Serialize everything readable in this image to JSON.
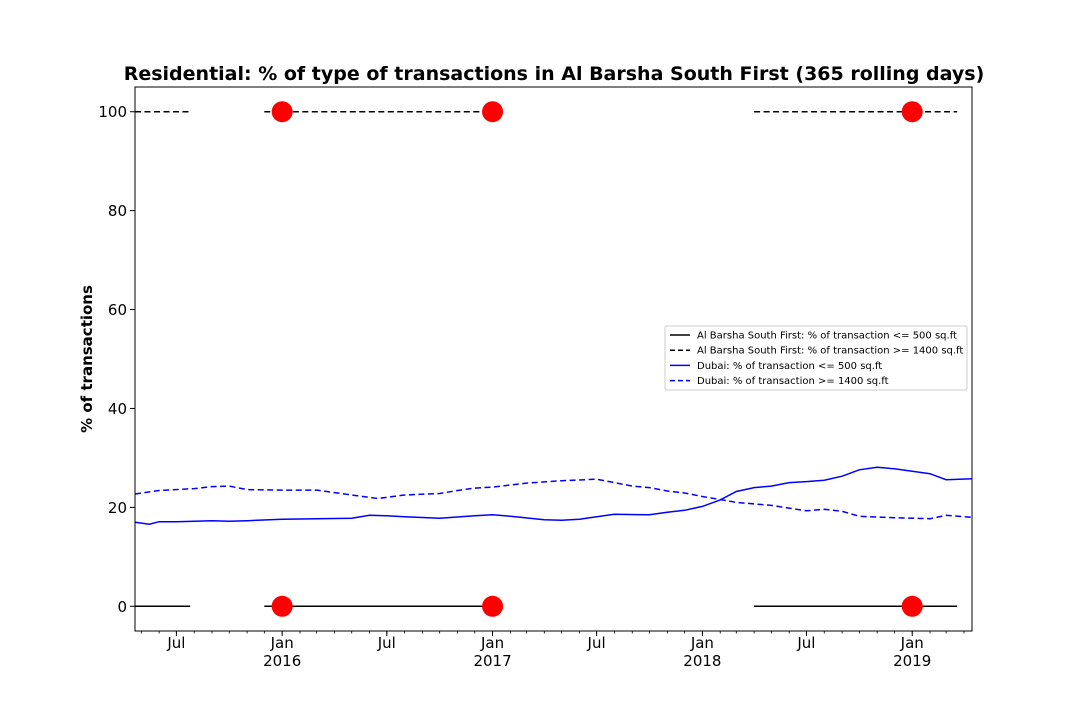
{
  "chart_data": {
    "type": "line",
    "title": "Residential: % of type of transactions in Al Barsha South First (365 rolling days)",
    "ylabel": "% of transactions",
    "xlabel": "",
    "ylim": [
      -5,
      105
    ],
    "xlim": [
      "2015-04-20",
      "2019-04-15"
    ],
    "grid": false,
    "legend_position": "center-right",
    "y_ticks": [
      0,
      20,
      40,
      60,
      80,
      100
    ],
    "x_ticks": [
      {
        "date": "2015-07-01",
        "label": "Jul",
        "sub": ""
      },
      {
        "date": "2016-01-01",
        "label": "Jan",
        "sub": "2016"
      },
      {
        "date": "2016-07-01",
        "label": "Jul",
        "sub": ""
      },
      {
        "date": "2017-01-01",
        "label": "Jan",
        "sub": "2017"
      },
      {
        "date": "2017-07-01",
        "label": "Jul",
        "sub": ""
      },
      {
        "date": "2018-01-01",
        "label": "Jan",
        "sub": "2018"
      },
      {
        "date": "2018-07-01",
        "label": "Jul",
        "sub": ""
      },
      {
        "date": "2019-01-01",
        "label": "Jan",
        "sub": "2019"
      }
    ],
    "series": [
      {
        "name": "Al Barsha South First: % of transaction <= 500 sq.ft",
        "color": "#000000",
        "dash": "solid",
        "segments": [
          [
            [
              "2015-04-20",
              0
            ],
            [
              "2015-07-25",
              0
            ]
          ],
          [
            [
              "2015-12-01",
              0
            ],
            [
              "2017-01-05",
              0
            ]
          ],
          [
            [
              "2018-04-01",
              0
            ],
            [
              "2019-03-20",
              0
            ]
          ]
        ]
      },
      {
        "name": "Al Barsha South First: % of transaction >= 1400 sq.ft",
        "color": "#000000",
        "dash": "dashed",
        "segments": [
          [
            [
              "2015-04-20",
              100
            ],
            [
              "2015-07-25",
              100
            ]
          ],
          [
            [
              "2015-12-01",
              100
            ],
            [
              "2017-01-05",
              100
            ]
          ],
          [
            [
              "2018-04-01",
              100
            ],
            [
              "2019-03-20",
              100
            ]
          ]
        ]
      },
      {
        "name": "Dubai: % of transaction <= 500 sq.ft",
        "color": "#0000ff",
        "dash": "solid",
        "points": [
          [
            "2015-04-20",
            17.0
          ],
          [
            "2015-05-15",
            16.6
          ],
          [
            "2015-06-01",
            17.1
          ],
          [
            "2015-07-01",
            17.1
          ],
          [
            "2015-08-01",
            17.2
          ],
          [
            "2015-09-01",
            17.3
          ],
          [
            "2015-10-01",
            17.2
          ],
          [
            "2015-11-01",
            17.3
          ],
          [
            "2016-01-01",
            17.6
          ],
          [
            "2016-03-01",
            17.7
          ],
          [
            "2016-05-01",
            17.8
          ],
          [
            "2016-06-01",
            18.4
          ],
          [
            "2016-07-01",
            18.3
          ],
          [
            "2016-08-01",
            18.1
          ],
          [
            "2016-10-01",
            17.8
          ],
          [
            "2016-12-01",
            18.3
          ],
          [
            "2017-01-01",
            18.5
          ],
          [
            "2017-02-01",
            18.2
          ],
          [
            "2017-04-01",
            17.5
          ],
          [
            "2017-05-01",
            17.4
          ],
          [
            "2017-06-01",
            17.6
          ],
          [
            "2017-07-01",
            18.1
          ],
          [
            "2017-08-01",
            18.6
          ],
          [
            "2017-10-01",
            18.5
          ],
          [
            "2017-11-01",
            19.0
          ],
          [
            "2017-12-01",
            19.4
          ],
          [
            "2018-01-01",
            20.2
          ],
          [
            "2018-02-01",
            21.5
          ],
          [
            "2018-03-01",
            23.2
          ],
          [
            "2018-04-01",
            24.0
          ],
          [
            "2018-05-01",
            24.3
          ],
          [
            "2018-06-01",
            25.0
          ],
          [
            "2018-07-01",
            25.2
          ],
          [
            "2018-08-01",
            25.5
          ],
          [
            "2018-09-01",
            26.3
          ],
          [
            "2018-10-01",
            27.6
          ],
          [
            "2018-11-01",
            28.1
          ],
          [
            "2018-12-01",
            27.8
          ],
          [
            "2019-01-01",
            27.3
          ],
          [
            "2019-02-01",
            26.8
          ],
          [
            "2019-03-01",
            25.6
          ],
          [
            "2019-04-15",
            25.8
          ]
        ]
      },
      {
        "name": "Dubai: % of transaction >= 1400 sq.ft",
        "color": "#0000ff",
        "dash": "dashed",
        "points": [
          [
            "2015-04-20",
            22.7
          ],
          [
            "2015-06-01",
            23.4
          ],
          [
            "2015-08-01",
            23.8
          ],
          [
            "2015-09-01",
            24.2
          ],
          [
            "2015-10-01",
            24.3
          ],
          [
            "2015-11-01",
            23.6
          ],
          [
            "2016-01-01",
            23.5
          ],
          [
            "2016-03-01",
            23.5
          ],
          [
            "2016-05-01",
            22.5
          ],
          [
            "2016-06-15",
            21.8
          ],
          [
            "2016-08-01",
            22.5
          ],
          [
            "2016-10-01",
            22.8
          ],
          [
            "2016-11-01",
            23.4
          ],
          [
            "2016-12-01",
            23.9
          ],
          [
            "2017-01-01",
            24.1
          ],
          [
            "2017-03-01",
            24.9
          ],
          [
            "2017-05-01",
            25.4
          ],
          [
            "2017-07-01",
            25.7
          ],
          [
            "2017-08-01",
            25.0
          ],
          [
            "2017-09-01",
            24.3
          ],
          [
            "2017-10-01",
            24.0
          ],
          [
            "2017-11-01",
            23.3
          ],
          [
            "2017-12-01",
            22.9
          ],
          [
            "2018-01-01",
            22.2
          ],
          [
            "2018-03-01",
            21.0
          ],
          [
            "2018-05-01",
            20.4
          ],
          [
            "2018-07-01",
            19.3
          ],
          [
            "2018-08-01",
            19.6
          ],
          [
            "2018-09-01",
            19.2
          ],
          [
            "2018-10-01",
            18.2
          ],
          [
            "2018-12-01",
            17.9
          ],
          [
            "2019-02-01",
            17.7
          ],
          [
            "2019-03-01",
            18.4
          ],
          [
            "2019-04-15",
            18.0
          ]
        ]
      }
    ],
    "markers": {
      "color": "#ff0000",
      "points": [
        [
          "2016-01-01",
          100
        ],
        [
          "2017-01-01",
          100
        ],
        [
          "2019-01-01",
          100
        ],
        [
          "2016-01-01",
          0
        ],
        [
          "2017-01-01",
          0
        ],
        [
          "2019-01-01",
          0
        ]
      ]
    }
  }
}
